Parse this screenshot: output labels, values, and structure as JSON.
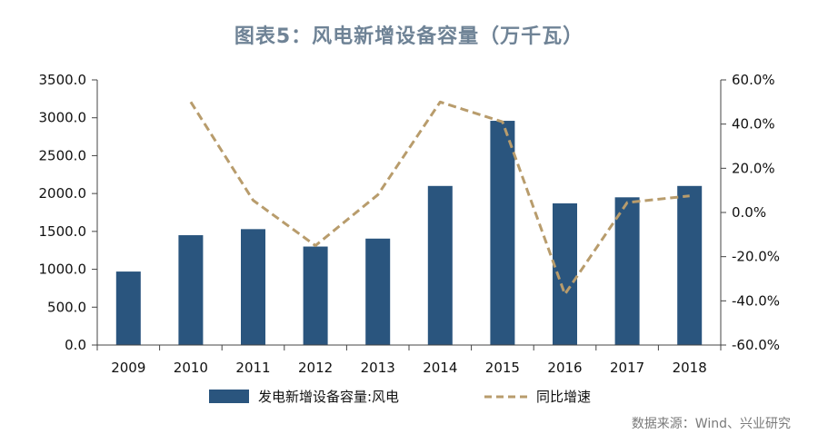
{
  "chart_data": {
    "type": "bar",
    "title": "图表5：风电新增设备容量（万千瓦）",
    "categories": [
      "2009",
      "2010",
      "2011",
      "2012",
      "2013",
      "2014",
      "2015",
      "2016",
      "2017",
      "2018"
    ],
    "series": [
      {
        "name": "发电新增设备容量:风电",
        "type": "bar",
        "axis": "left",
        "color": "#2a557e",
        "values": [
          970,
          1450,
          1530,
          1300,
          1405,
          2100,
          2960,
          1870,
          1950,
          2100
        ]
      },
      {
        "name": "同比增速",
        "type": "line",
        "axis": "right",
        "style": "dashed",
        "color": "#b89c6c",
        "values": [
          null,
          50.0,
          5.5,
          -15.0,
          8.0,
          50.0,
          41.0,
          -37.0,
          4.5,
          7.5
        ]
      }
    ],
    "ylim_left": [
      0,
      3500
    ],
    "yticks_left": [
      "0.0",
      "500.0",
      "1000.0",
      "1500.0",
      "2000.0",
      "2500.0",
      "3000.0",
      "3500.0"
    ],
    "ylim_right": [
      -60,
      60
    ],
    "yticks_right": [
      "-60.0%",
      "-40.0%",
      "-20.0%",
      "0.0%",
      "20.0%",
      "40.0%",
      "60.0%"
    ],
    "grid": false,
    "legend_position": "bottom"
  },
  "source_note": "数据来源：Wind、兴业研究"
}
